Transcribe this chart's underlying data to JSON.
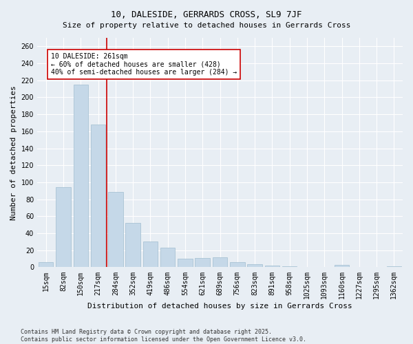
{
  "title": "10, DALESIDE, GERRARDS CROSS, SL9 7JF",
  "subtitle": "Size of property relative to detached houses in Gerrards Cross",
  "xlabel": "Distribution of detached houses by size in Gerrards Cross",
  "ylabel": "Number of detached properties",
  "categories": [
    "15sqm",
    "82sqm",
    "150sqm",
    "217sqm",
    "284sqm",
    "352sqm",
    "419sqm",
    "486sqm",
    "554sqm",
    "621sqm",
    "689sqm",
    "756sqm",
    "823sqm",
    "891sqm",
    "958sqm",
    "1025sqm",
    "1093sqm",
    "1160sqm",
    "1227sqm",
    "1295sqm",
    "1362sqm"
  ],
  "values": [
    6,
    94,
    215,
    168,
    89,
    52,
    30,
    23,
    10,
    11,
    12,
    6,
    4,
    2,
    1,
    0,
    0,
    3,
    0,
    0,
    1
  ],
  "bar_color": "#c5d8e8",
  "bar_edge_color": "#a0bdd0",
  "vline_x_index": 3,
  "vline_color": "#cc0000",
  "annotation_text": "10 DALESIDE: 261sqm\n← 60% of detached houses are smaller (428)\n40% of semi-detached houses are larger (284) →",
  "annotation_box_color": "#ffffff",
  "annotation_box_edge_color": "#cc0000",
  "ylim": [
    0,
    270
  ],
  "yticks": [
    0,
    20,
    40,
    60,
    80,
    100,
    120,
    140,
    160,
    180,
    200,
    220,
    240,
    260
  ],
  "title_fontsize": 9,
  "subtitle_fontsize": 8,
  "xlabel_fontsize": 8,
  "ylabel_fontsize": 8,
  "tick_fontsize": 7,
  "annotation_fontsize": 7,
  "footer_text": "Contains HM Land Registry data © Crown copyright and database right 2025.\nContains public sector information licensed under the Open Government Licence v3.0.",
  "footer_fontsize": 6,
  "background_color": "#e8eef4",
  "plot_background_color": "#e8eef4",
  "grid_color": "#ffffff",
  "grid_linewidth": 0.8
}
